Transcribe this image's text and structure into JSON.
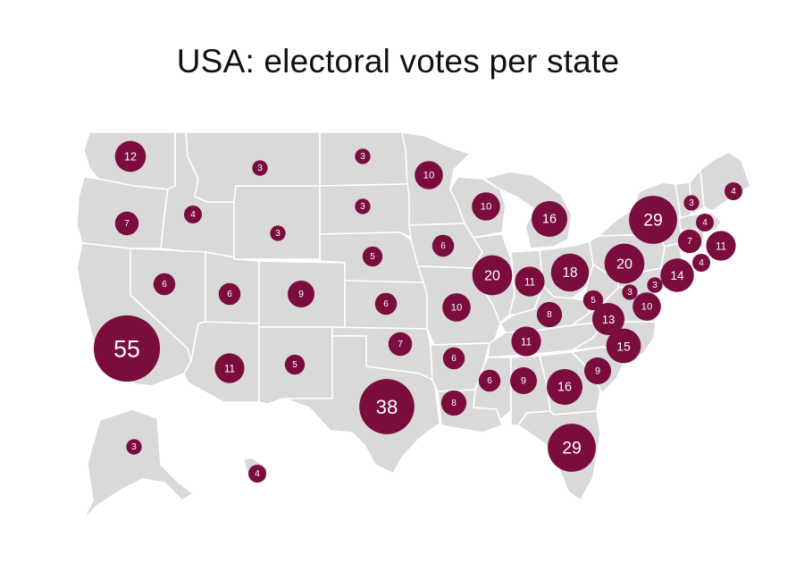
{
  "title": "USA: electoral votes per state",
  "colors": {
    "bubble": "#7a0d3d",
    "land": "#d9d9d9",
    "border": "#ffffff"
  },
  "states": [
    {
      "id": "WA",
      "votes": 12
    },
    {
      "id": "OR",
      "votes": 7
    },
    {
      "id": "CA",
      "votes": 55
    },
    {
      "id": "ID",
      "votes": 4
    },
    {
      "id": "NV",
      "votes": 6
    },
    {
      "id": "MT",
      "votes": 3
    },
    {
      "id": "WY",
      "votes": 3
    },
    {
      "id": "UT",
      "votes": 6
    },
    {
      "id": "AZ",
      "votes": 11
    },
    {
      "id": "CO",
      "votes": 9
    },
    {
      "id": "NM",
      "votes": 5
    },
    {
      "id": "ND",
      "votes": 3
    },
    {
      "id": "SD",
      "votes": 3
    },
    {
      "id": "NE",
      "votes": 5
    },
    {
      "id": "KS",
      "votes": 6
    },
    {
      "id": "OK",
      "votes": 7
    },
    {
      "id": "TX",
      "votes": 38
    },
    {
      "id": "MN",
      "votes": 10
    },
    {
      "id": "IA",
      "votes": 6
    },
    {
      "id": "MO",
      "votes": 10
    },
    {
      "id": "AR",
      "votes": 6
    },
    {
      "id": "LA",
      "votes": 8
    },
    {
      "id": "WI",
      "votes": 10
    },
    {
      "id": "IL",
      "votes": 20
    },
    {
      "id": "MI",
      "votes": 16
    },
    {
      "id": "IN",
      "votes": 11
    },
    {
      "id": "OH",
      "votes": 18
    },
    {
      "id": "KY",
      "votes": 8
    },
    {
      "id": "TN",
      "votes": 11
    },
    {
      "id": "MS",
      "votes": 6
    },
    {
      "id": "AL",
      "votes": 9
    },
    {
      "id": "GA",
      "votes": 16
    },
    {
      "id": "FL",
      "votes": 29
    },
    {
      "id": "SC",
      "votes": 9
    },
    {
      "id": "NC",
      "votes": 15
    },
    {
      "id": "VA",
      "votes": 13
    },
    {
      "id": "WV",
      "votes": 5
    },
    {
      "id": "MD",
      "votes": 10
    },
    {
      "id": "DE",
      "votes": 3
    },
    {
      "id": "DC",
      "votes": 3
    },
    {
      "id": "PA",
      "votes": 20
    },
    {
      "id": "NJ",
      "votes": 14
    },
    {
      "id": "NY",
      "votes": 29
    },
    {
      "id": "CT",
      "votes": 7
    },
    {
      "id": "RI",
      "votes": 4
    },
    {
      "id": "MA",
      "votes": 11
    },
    {
      "id": "VT",
      "votes": 3
    },
    {
      "id": "NH",
      "votes": 4
    },
    {
      "id": "ME",
      "votes": 4
    },
    {
      "id": "AK",
      "votes": 3
    },
    {
      "id": "HI",
      "votes": 4
    }
  ]
}
